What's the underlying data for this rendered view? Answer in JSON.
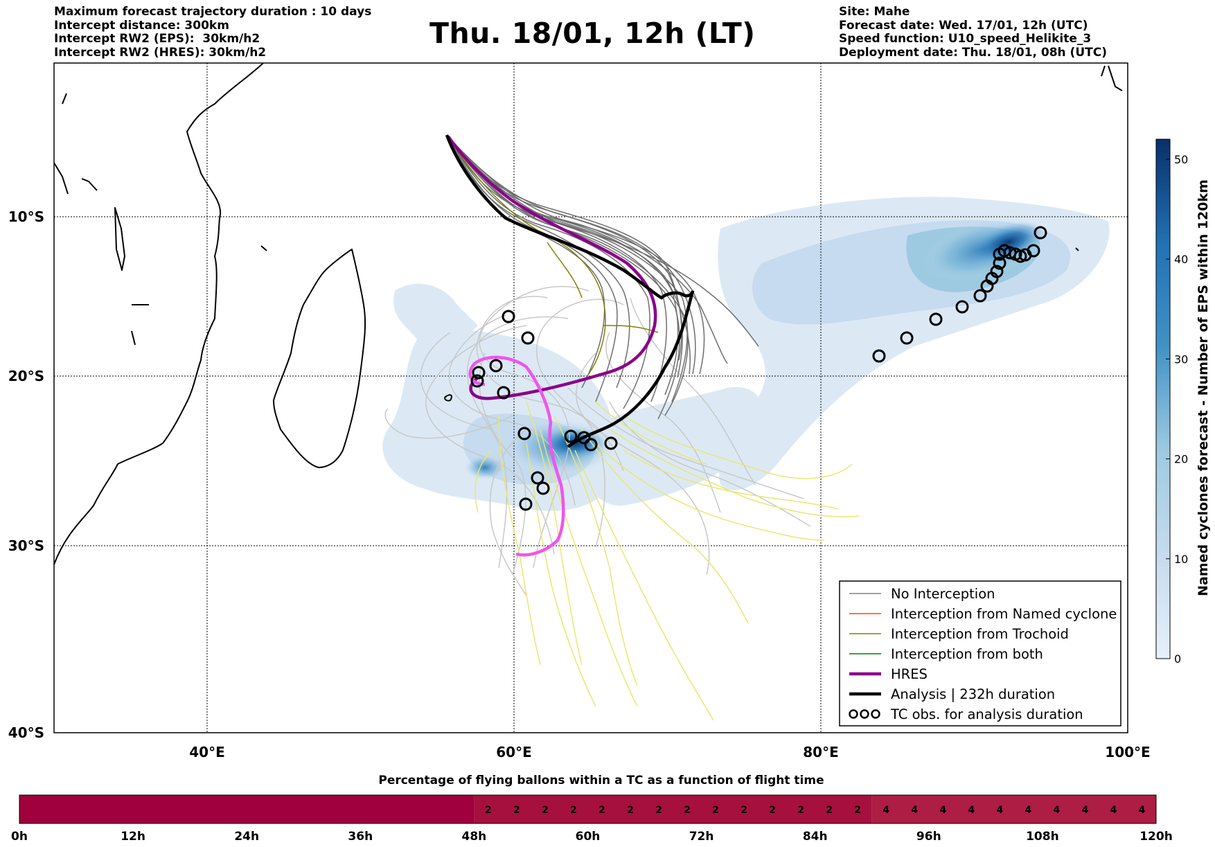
{
  "header": {
    "title": "Thu. 18/01, 12h (LT)",
    "left_lines": [
      "Maximum forecast trajectory duration : 10 days",
      "Intercept distance: 300km",
      "Intercept RW2 (EPS):  30km/h2",
      "Intercept RW2 (HRES): 30km/h2"
    ],
    "right_lines": [
      "Site: Mahe",
      "Forecast date: Wed. 17/01, 12h (UTC)",
      "Speed function: U10_speed_Helikite_3",
      "Deployment date: Thu. 18/01, 08h (UTC)"
    ]
  },
  "map": {
    "lon_labels": [
      "40°E",
      "60°E",
      "80°E",
      "100°E"
    ],
    "lat_labels": [
      "10°S",
      "20°S",
      "30°S",
      "40°S"
    ],
    "colors": {
      "no_interception": "#808080",
      "no_interception_light": "#c8c8c8",
      "eps_yellow": "#e8e870",
      "trochoid": "#808000",
      "hres": "#8b008b",
      "hres_pink": "#ee55ee",
      "analysis": "#000000"
    }
  },
  "legend": {
    "items": [
      {
        "label": "No Interception",
        "color": "#808080",
        "style": "thin"
      },
      {
        "label": "Interception from Named cyclone",
        "color": "#ff4500",
        "style": "thin"
      },
      {
        "label": "Interception from Trochoid",
        "color": "#808000",
        "style": "thin"
      },
      {
        "label": "Interception from both",
        "color": "#008000",
        "style": "thin"
      },
      {
        "label": "HRES",
        "color": "#8b008b",
        "style": "thick"
      },
      {
        "label": "Analysis | 232h duration",
        "color": "#000000",
        "style": "thick"
      },
      {
        "label": "TC obs. for analysis duration",
        "color": "#000000",
        "style": "symbol"
      }
    ]
  },
  "colorbar": {
    "title": "Named cyclones forecast - Number of EPS within 120km",
    "ticks": [
      "0",
      "10",
      "20",
      "30",
      "40",
      "50"
    ],
    "min": 0,
    "max": 52,
    "color_low": "#e6f0fa",
    "color_high": "#08306b"
  },
  "flight_bar": {
    "title": "Percentage of flying ballons within a TC as a function of flight time",
    "ticks": [
      "0h",
      "12h",
      "24h",
      "36h",
      "48h",
      "60h",
      "72h",
      "84h",
      "96h",
      "108h",
      "120h"
    ],
    "max_hours": 120,
    "segments": [
      {
        "from_h": 0,
        "to_h": 48,
        "value": "",
        "color": "#a0003c"
      },
      {
        "from_h": 48,
        "to_h": 90,
        "value": "2",
        "color": "#a5103f"
      },
      {
        "from_h": 90,
        "to_h": 120,
        "value": "4",
        "color": "#ad1d44"
      }
    ],
    "cell_hours": 3
  }
}
